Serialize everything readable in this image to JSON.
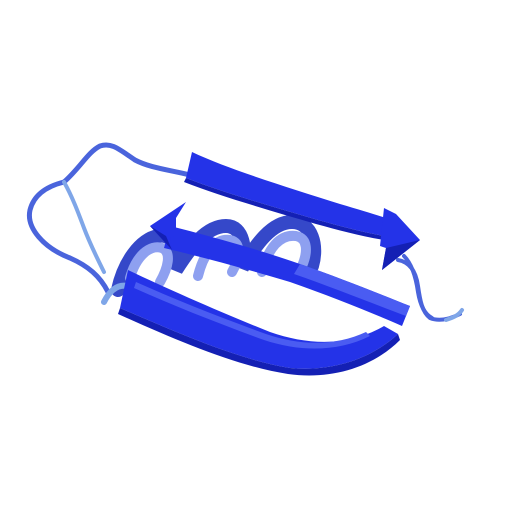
{
  "image": {
    "subject": "protein-ribbon-structure",
    "background_color": "#ffffff",
    "colors": {
      "strand": "#2433e8",
      "strand_dark": "#1420b4",
      "strand_light": "#4a5cf2",
      "helix": "#5b74e6",
      "helix_dark": "#3548c9",
      "helix_light": "#8ea0f0",
      "coil": "#4a64dc",
      "coil_light": "#7fa6e8"
    }
  }
}
